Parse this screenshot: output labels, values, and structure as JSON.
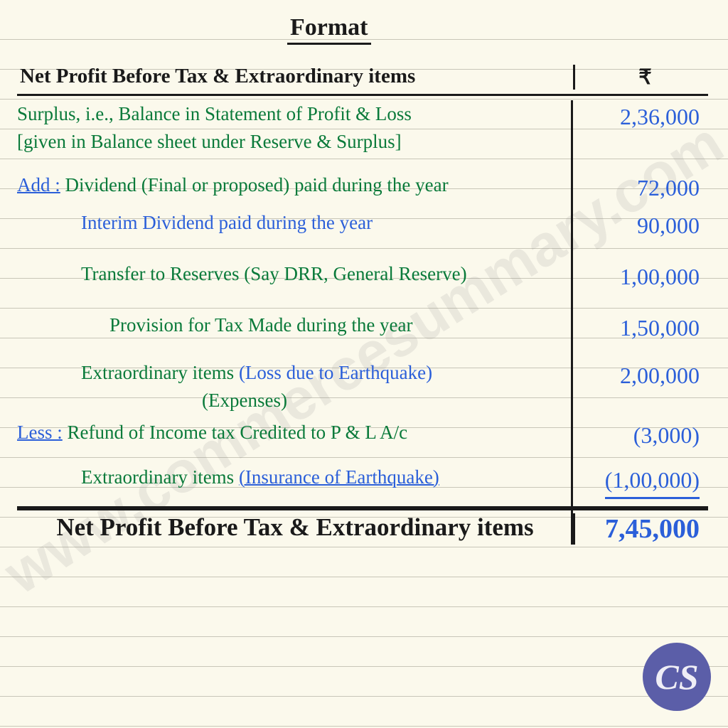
{
  "title": "Format",
  "header": {
    "description": "Net Profit Before Tax & Extraordinary items",
    "amount_symbol": "₹"
  },
  "rows": [
    {
      "desc_parts": [
        {
          "text": "Surplus, i.e., Balance in Statement of Profit & Loss",
          "class": "green"
        },
        {
          "text": "[given in Balance sheet under Reserve & Surplus]",
          "class": "green",
          "newline": true
        }
      ],
      "amount": "2,36,000",
      "desc_indent": ""
    },
    {
      "desc_parts": [
        {
          "text": "Add :",
          "class": "blue label-underline"
        },
        {
          "text": " Dividend (Final or proposed) paid during the year",
          "class": "green"
        }
      ],
      "amount": "72,000",
      "top_gap": "22px"
    },
    {
      "desc_parts": [
        {
          "text": "Interim Dividend paid during the year",
          "class": "blue"
        }
      ],
      "amount": "90,000",
      "desc_indent": "indent1"
    },
    {
      "desc_parts": [
        {
          "text": "Transfer to Reserves (Say DRR, General Reserve)",
          "class": "green"
        }
      ],
      "amount": "1,00,000",
      "desc_indent": "indent1",
      "top_gap": "26px"
    },
    {
      "desc_parts": [
        {
          "text": "Provision for Tax Made during the year",
          "class": "green"
        }
      ],
      "amount": "1,50,000",
      "desc_indent": "indent2",
      "top_gap": "26px"
    },
    {
      "desc_parts": [
        {
          "text": "Extraordinary items",
          "class": "green"
        },
        {
          "text": " (Loss due to Earthquake)",
          "class": "blue"
        },
        {
          "text": "(Expenses)",
          "class": "green",
          "newline": true,
          "sub_indent": "170px"
        }
      ],
      "amount": "2,00,000",
      "desc_indent": "indent1",
      "top_gap": "20px"
    },
    {
      "desc_parts": [
        {
          "text": "Less :",
          "class": "blue label-underline"
        },
        {
          "text": " Refund of Income tax Credited to P & L A/c",
          "class": "green"
        }
      ],
      "amount": "(3,000)",
      "top_gap": "6px"
    },
    {
      "desc_parts": [
        {
          "text": "Extraordinary items ",
          "class": "green"
        },
        {
          "text": "(Insurance of Earthquake)",
          "class": "blue label-underline"
        }
      ],
      "amount": "(1,00,000)",
      "amount_underline": true,
      "desc_indent": "indent1",
      "top_gap": "16px"
    }
  ],
  "total": {
    "description": "Net Profit Before Tax & Extraordinary items",
    "amount": "7,45,000"
  },
  "watermark": "www.commercesummary.com",
  "badge": "CS",
  "colors": {
    "paper": "#fbf9ec",
    "rule": "#c8c6b8",
    "ink_black": "#1a1a1a",
    "ink_green": "#0a7a3a",
    "ink_blue": "#2b5fd9",
    "badge_bg": "#5b5ea8",
    "badge_fg": "#efeef6"
  }
}
